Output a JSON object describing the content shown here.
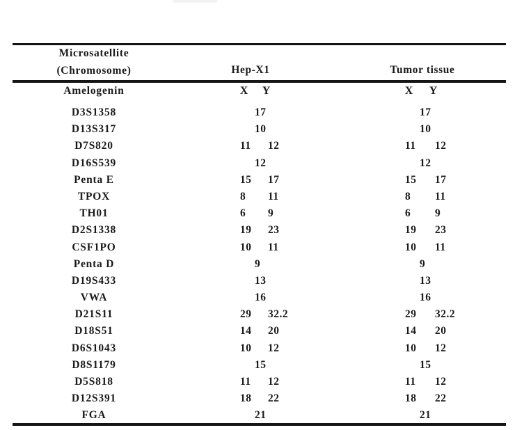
{
  "colors": {
    "background": "#ffffff",
    "text": "#1a1a1a",
    "rule": "#151515"
  },
  "table": {
    "header": {
      "col1_line1": "Microsatellite",
      "col1_line2": "(Chromosome)",
      "col2": "Hep-X1",
      "col3": "Tumor tissue"
    },
    "rows": [
      {
        "locus": "Amelogenin",
        "hep": [
          "X",
          "Y"
        ],
        "tumor": [
          "X",
          "Y"
        ]
      },
      {
        "locus": "D3S1358",
        "hep": [
          "17"
        ],
        "tumor": [
          "17"
        ]
      },
      {
        "locus": "D13S317",
        "hep": [
          "10"
        ],
        "tumor": [
          "10"
        ]
      },
      {
        "locus": "D7S820",
        "hep": [
          "11",
          "12"
        ],
        "tumor": [
          "11",
          "12"
        ]
      },
      {
        "locus": "D16S539",
        "hep": [
          "12"
        ],
        "tumor": [
          "12"
        ]
      },
      {
        "locus": "Penta E",
        "hep": [
          "15",
          "17"
        ],
        "tumor": [
          "15",
          "17"
        ]
      },
      {
        "locus": "TPOX",
        "hep": [
          "8",
          "11"
        ],
        "tumor": [
          "8",
          "11"
        ]
      },
      {
        "locus": "TH01",
        "hep": [
          "6",
          "9"
        ],
        "tumor": [
          "6",
          "9"
        ]
      },
      {
        "locus": "D2S1338",
        "hep": [
          "19",
          "23"
        ],
        "tumor": [
          "19",
          "23"
        ]
      },
      {
        "locus": "CSF1PO",
        "hep": [
          "10",
          "11"
        ],
        "tumor": [
          "10",
          "11"
        ]
      },
      {
        "locus": "Penta D",
        "hep": [
          "9"
        ],
        "tumor": [
          "9"
        ]
      },
      {
        "locus": "D19S433",
        "hep": [
          "13"
        ],
        "tumor": [
          "13"
        ]
      },
      {
        "locus": "VWA",
        "hep": [
          "16"
        ],
        "tumor": [
          "16"
        ]
      },
      {
        "locus": "D21S11",
        "hep": [
          "29",
          "32.2"
        ],
        "tumor": [
          "29",
          "32.2"
        ]
      },
      {
        "locus": "D18S51",
        "hep": [
          "14",
          "20"
        ],
        "tumor": [
          "14",
          "20"
        ]
      },
      {
        "locus": "D6S1043",
        "hep": [
          "10",
          "12"
        ],
        "tumor": [
          "10",
          "12"
        ]
      },
      {
        "locus": "D8S1179",
        "hep": [
          "15"
        ],
        "tumor": [
          "15"
        ]
      },
      {
        "locus": "D5S818",
        "hep": [
          "11",
          "12"
        ],
        "tumor": [
          "11",
          "12"
        ]
      },
      {
        "locus": "D12S391",
        "hep": [
          "18",
          "22"
        ],
        "tumor": [
          "18",
          "22"
        ]
      },
      {
        "locus": "FGA",
        "hep": [
          "21"
        ],
        "tumor": [
          "21"
        ]
      }
    ]
  }
}
